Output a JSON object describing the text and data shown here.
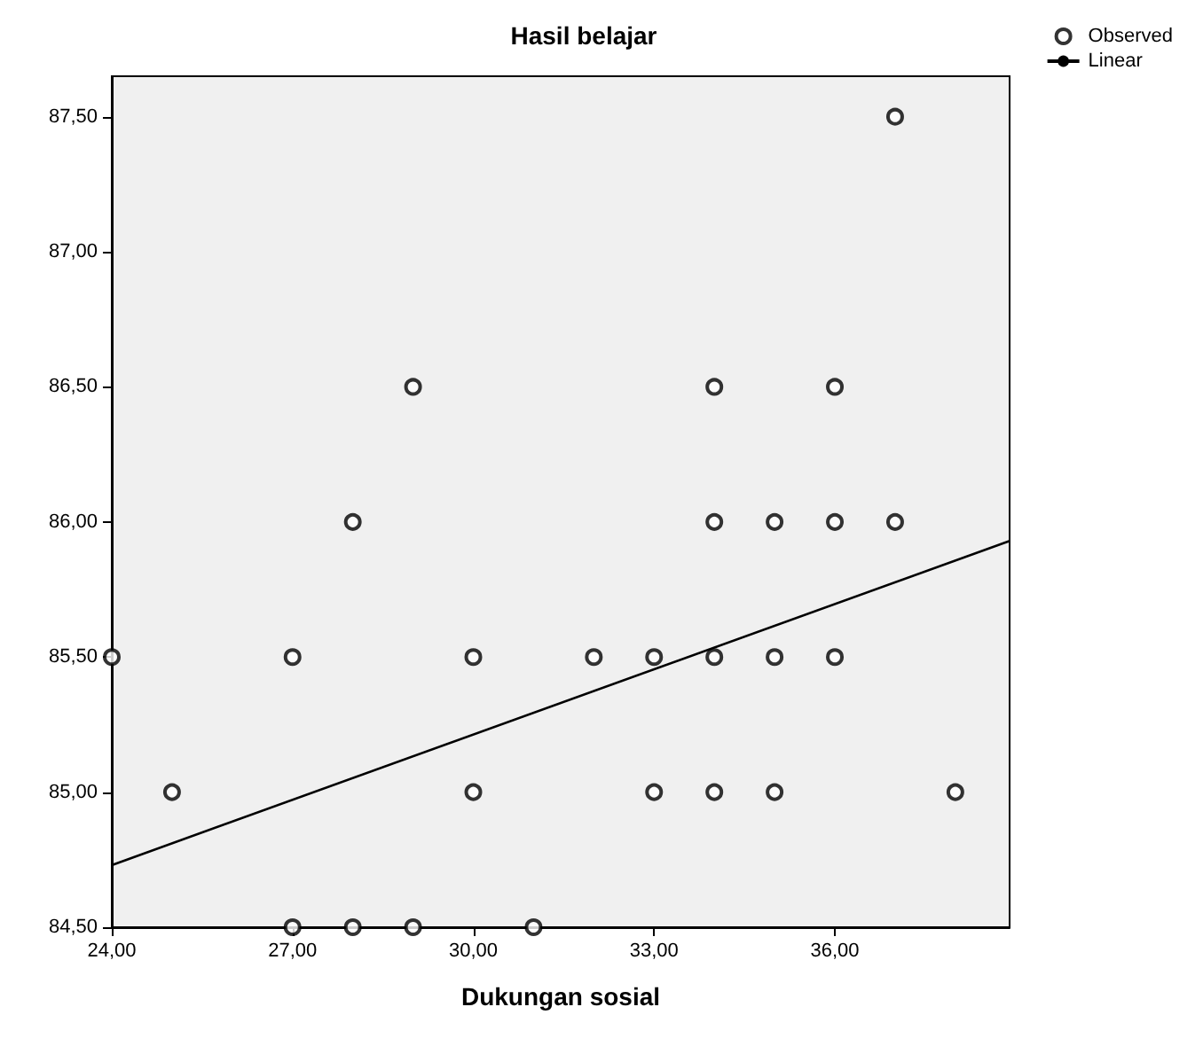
{
  "chart_data": {
    "type": "scatter",
    "title": "Hasil belajar",
    "xlabel": "Dukungan sosial",
    "xlim": [
      24,
      38.9
    ],
    "ylim": [
      84.5,
      87.65
    ],
    "xticks": [
      {
        "value": 24,
        "label": "24,00"
      },
      {
        "value": 27,
        "label": "27,00"
      },
      {
        "value": 30,
        "label": "30,00"
      },
      {
        "value": 33,
        "label": "33,00"
      },
      {
        "value": 36,
        "label": "36,00"
      }
    ],
    "yticks": [
      {
        "value": 84.5,
        "label": "84,50"
      },
      {
        "value": 85,
        "label": "85,00"
      },
      {
        "value": 85.5,
        "label": "85,50"
      },
      {
        "value": 86,
        "label": "86,00"
      },
      {
        "value": 86.5,
        "label": "86,50"
      },
      {
        "value": 87,
        "label": "87,00"
      },
      {
        "value": 87.5,
        "label": "87,50"
      }
    ],
    "grid": false,
    "legend": "top right",
    "series": [
      {
        "name": "Observed",
        "marker": "circle",
        "color": "#000000",
        "x": [
          24,
          25,
          27,
          27,
          28,
          28,
          29,
          29,
          30,
          30,
          31,
          32,
          33,
          33,
          34,
          34,
          34,
          34,
          35,
          35,
          35,
          36,
          36,
          36,
          37,
          37,
          38
        ],
        "values": [
          85.5,
          85,
          85.5,
          84.5,
          86,
          84.5,
          86.5,
          84.5,
          85.5,
          85,
          84.5,
          85.5,
          85.5,
          85,
          86.5,
          86,
          85.5,
          85,
          86,
          85.5,
          85,
          86.5,
          86,
          85.5,
          87.5,
          86,
          85
        ]
      },
      {
        "name": "Linear",
        "type": "line",
        "marker": "none",
        "color": "#000000",
        "line_style": "solid",
        "x": [
          24,
          38.9
        ],
        "values": [
          84.73,
          85.93
        ]
      }
    ]
  }
}
